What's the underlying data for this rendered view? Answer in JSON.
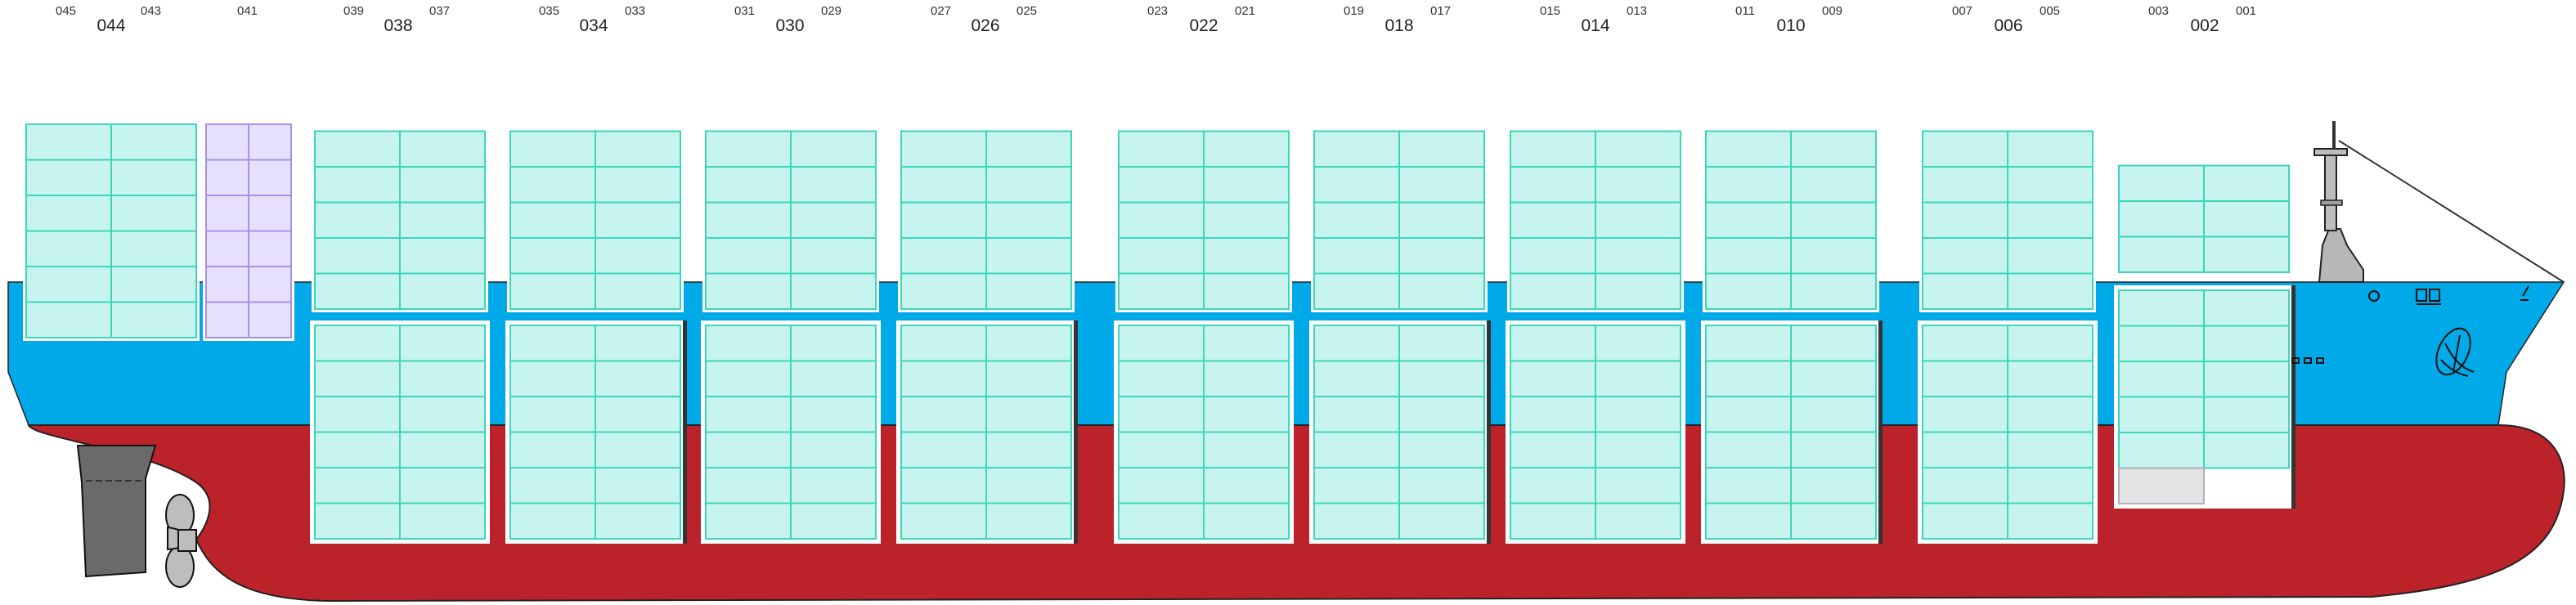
{
  "colors": {
    "hull_red": "#bb222a",
    "hull_blue": "#00a9e8",
    "container_fill": "#c8f4ef",
    "container_line": "#3bd6bb",
    "reefer_fill": "#e6e0fc",
    "reefer_line": "#a890e8",
    "empty_slot_fill": "#e3e3e6",
    "hatch_frame": "#ffffff",
    "bulkhead": "#333333",
    "rudder": "#6a6a6a",
    "propeller": "#bdbdbd"
  },
  "bays": [
    {
      "id": "bay-044",
      "main": "044",
      "fore": "045",
      "aft": "043",
      "deck_rows": 6,
      "hold_rows": 0
    },
    {
      "id": "bay-041",
      "main": "",
      "fore": "041",
      "aft": "",
      "deck_rows": 6,
      "hold_rows": 0,
      "reefer": true
    },
    {
      "id": "bay-038",
      "main": "038",
      "fore": "039",
      "aft": "037",
      "deck_rows": 5,
      "hold_rows": 6
    },
    {
      "id": "bay-034",
      "main": "034",
      "fore": "035",
      "aft": "033",
      "deck_rows": 5,
      "hold_rows": 6
    },
    {
      "id": "bay-030",
      "main": "030",
      "fore": "031",
      "aft": "029",
      "deck_rows": 5,
      "hold_rows": 6
    },
    {
      "id": "bay-026",
      "main": "026",
      "fore": "027",
      "aft": "025",
      "deck_rows": 5,
      "hold_rows": 6
    },
    {
      "id": "bay-022",
      "main": "022",
      "fore": "023",
      "aft": "021",
      "deck_rows": 5,
      "hold_rows": 6
    },
    {
      "id": "bay-018",
      "main": "018",
      "fore": "019",
      "aft": "017",
      "deck_rows": 5,
      "hold_rows": 6
    },
    {
      "id": "bay-014",
      "main": "014",
      "fore": "015",
      "aft": "013",
      "deck_rows": 5,
      "hold_rows": 6
    },
    {
      "id": "bay-010",
      "main": "010",
      "fore": "011",
      "aft": "009",
      "deck_rows": 5,
      "hold_rows": 6
    },
    {
      "id": "bay-006",
      "main": "006",
      "fore": "007",
      "aft": "005",
      "deck_rows": 5,
      "hold_rows": 6
    },
    {
      "id": "bay-002",
      "main": "002",
      "fore": "003",
      "aft": "001",
      "deck_rows": 3,
      "hold_rows": 5,
      "empty_slots": 1
    }
  ]
}
